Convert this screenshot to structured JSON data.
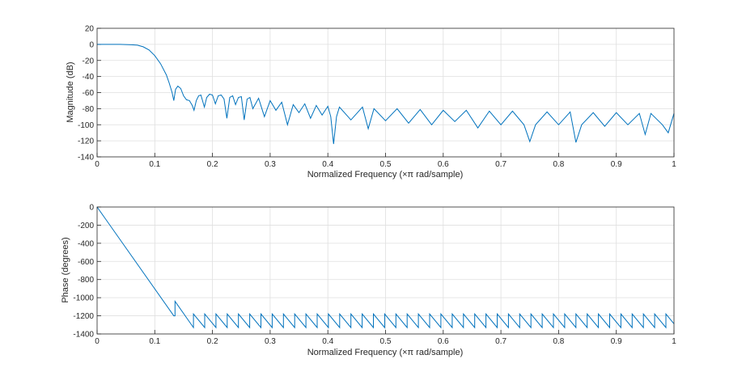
{
  "chart_data": [
    {
      "type": "line",
      "xlabel": "Normalized Frequency  (×π rad/sample)",
      "ylabel": "Magnitude (dB)",
      "xlim": [
        0,
        1
      ],
      "ylim": [
        -140,
        20
      ],
      "xticks": [
        "0",
        "0.1",
        "0.2",
        "0.3",
        "0.4",
        "0.5",
        "0.6",
        "0.7",
        "0.8",
        "0.9",
        "1"
      ],
      "yticks": [
        "20",
        "0",
        "-20",
        "-40",
        "-60",
        "-80",
        "-100",
        "-120",
        "-140"
      ],
      "grid": true,
      "line_color": "#0072BD",
      "x": [
        0,
        0.02,
        0.04,
        0.06,
        0.07,
        0.08,
        0.09,
        0.1,
        0.11,
        0.12,
        0.125,
        0.13,
        0.133,
        0.136,
        0.14,
        0.145,
        0.15,
        0.155,
        0.16,
        0.165,
        0.168,
        0.172,
        0.176,
        0.18,
        0.186,
        0.19,
        0.195,
        0.2,
        0.205,
        0.21,
        0.215,
        0.22,
        0.225,
        0.23,
        0.235,
        0.24,
        0.245,
        0.25,
        0.255,
        0.26,
        0.265,
        0.27,
        0.28,
        0.29,
        0.3,
        0.31,
        0.32,
        0.33,
        0.34,
        0.35,
        0.36,
        0.37,
        0.38,
        0.39,
        0.4,
        0.405,
        0.41,
        0.415,
        0.42,
        0.44,
        0.46,
        0.47,
        0.48,
        0.5,
        0.52,
        0.54,
        0.56,
        0.58,
        0.6,
        0.62,
        0.64,
        0.66,
        0.68,
        0.7,
        0.72,
        0.74,
        0.75,
        0.76,
        0.78,
        0.8,
        0.82,
        0.83,
        0.84,
        0.86,
        0.88,
        0.9,
        0.92,
        0.94,
        0.95,
        0.96,
        0.98,
        0.99,
        0.995,
        1
      ],
      "y": [
        0,
        0,
        0,
        -0.5,
        -1,
        -3,
        -7,
        -14,
        -24,
        -38,
        -48,
        -60,
        -70,
        -56,
        -52,
        -55,
        -64,
        -69,
        -70,
        -76,
        -82,
        -70,
        -64,
        -63,
        -78,
        -66,
        -62,
        -63,
        -74,
        -64,
        -63,
        -68,
        -92,
        -66,
        -64,
        -75,
        -66,
        -65,
        -94,
        -68,
        -66,
        -80,
        -67,
        -90,
        -70,
        -82,
        -72,
        -100,
        -75,
        -85,
        -74,
        -92,
        -76,
        -88,
        -77,
        -90,
        -124,
        -90,
        -78,
        -94,
        -78,
        -105,
        -80,
        -95,
        -80,
        -98,
        -81,
        -100,
        -82,
        -96,
        -82,
        -104,
        -83,
        -100,
        -83,
        -100,
        -121,
        -100,
        -84,
        -100,
        -84,
        -122,
        -100,
        -85,
        -102,
        -85,
        -100,
        -86,
        -112,
        -86,
        -100,
        -110,
        -98,
        -86
      ]
    },
    {
      "type": "line",
      "xlabel": "Normalized Frequency  (×π rad/sample)",
      "ylabel": "Phase (degrees)",
      "xlim": [
        0,
        1
      ],
      "ylim": [
        -1400,
        0
      ],
      "xticks": [
        "0",
        "0.1",
        "0.2",
        "0.3",
        "0.4",
        "0.5",
        "0.6",
        "0.7",
        "0.8",
        "0.9",
        "1"
      ],
      "yticks": [
        "0",
        "-200",
        "-400",
        "-600",
        "-800",
        "-1000",
        "-1200",
        "-1400"
      ],
      "grid": true,
      "line_color": "#0072BD",
      "phase_linear": {
        "x": [
          0,
          0.133
        ],
        "y": [
          0,
          -1200
        ]
      },
      "phase_jump": {
        "x": 0.135,
        "y": [
          -1200,
          -1040
        ]
      },
      "phase_decline": {
        "x": [
          0.135,
          0.167
        ],
        "y": [
          -1040,
          -1330
        ]
      },
      "sawtooth": {
        "x_start": 0.167,
        "x_end": 1,
        "period": 0.0195,
        "low": -1330,
        "high": -1180
      }
    }
  ]
}
